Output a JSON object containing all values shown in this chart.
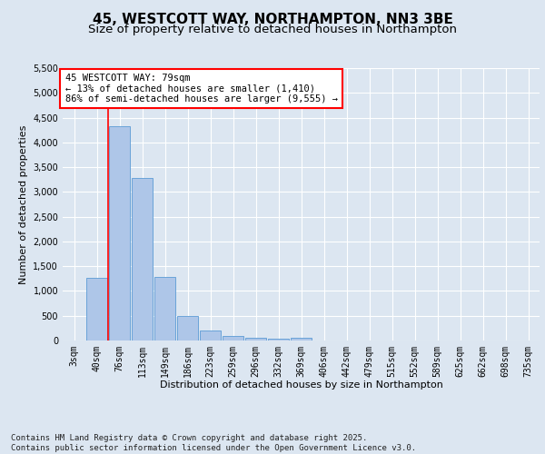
{
  "title1": "45, WESTCOTT WAY, NORTHAMPTON, NN3 3BE",
  "title2": "Size of property relative to detached houses in Northampton",
  "xlabel": "Distribution of detached houses by size in Northampton",
  "ylabel": "Number of detached properties",
  "categories": [
    "3sqm",
    "40sqm",
    "76sqm",
    "113sqm",
    "149sqm",
    "186sqm",
    "223sqm",
    "259sqm",
    "296sqm",
    "332sqm",
    "369sqm",
    "406sqm",
    "442sqm",
    "479sqm",
    "515sqm",
    "552sqm",
    "589sqm",
    "625sqm",
    "662sqm",
    "698sqm",
    "735sqm"
  ],
  "values": [
    0,
    1260,
    4320,
    3280,
    1280,
    490,
    210,
    90,
    50,
    30,
    50,
    0,
    0,
    0,
    0,
    0,
    0,
    0,
    0,
    0,
    0
  ],
  "bar_color": "#aec6e8",
  "bar_edge_color": "#5b9bd5",
  "vline_color": "#ff0000",
  "annotation_text": "45 WESTCOTT WAY: 79sqm\n← 13% of detached houses are smaller (1,410)\n86% of semi-detached houses are larger (9,555) →",
  "annotation_box_color": "#ffffff",
  "annotation_box_edge": "#ff0000",
  "ylim": [
    0,
    5500
  ],
  "yticks": [
    0,
    500,
    1000,
    1500,
    2000,
    2500,
    3000,
    3500,
    4000,
    4500,
    5000,
    5500
  ],
  "background_color": "#dce6f1",
  "plot_bg_color": "#dce6f1",
  "footer": "Contains HM Land Registry data © Crown copyright and database right 2025.\nContains public sector information licensed under the Open Government Licence v3.0.",
  "title_fontsize": 11,
  "subtitle_fontsize": 9.5,
  "ylabel_fontsize": 8,
  "xlabel_fontsize": 8,
  "tick_fontsize": 7,
  "annotation_fontsize": 7.5,
  "footer_fontsize": 6.5
}
